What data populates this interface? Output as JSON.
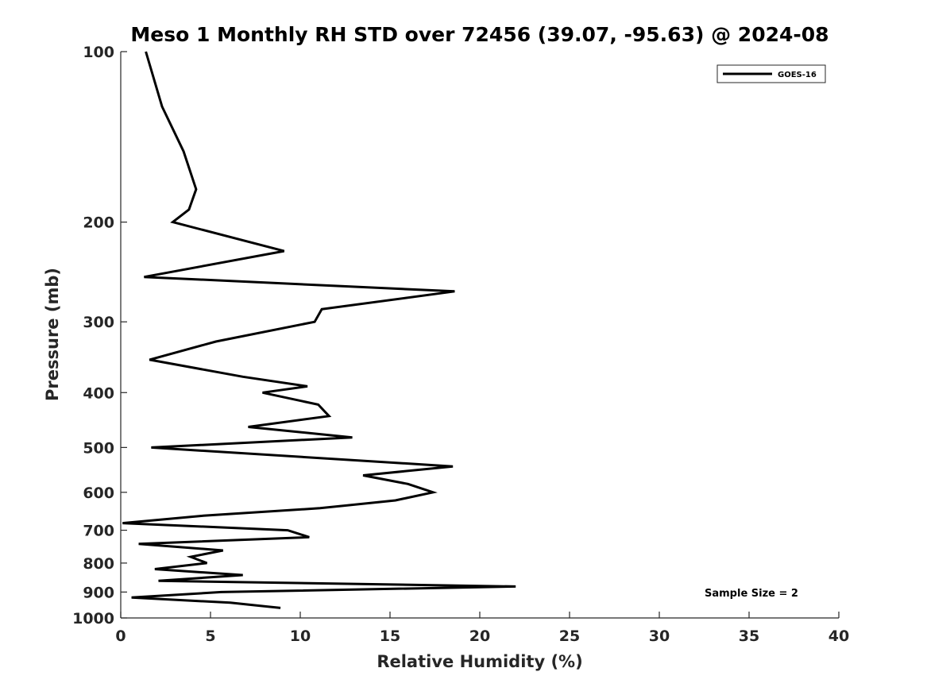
{
  "chart_data": {
    "type": "line",
    "title": "Meso 1 Monthly RH STD over 72456 (39.07, -95.63) @ 2024-08",
    "xlabel": "Relative Humidity (%)",
    "ylabel": "Pressure (mb)",
    "xlim": [
      0,
      40
    ],
    "ylim": [
      100,
      1000
    ],
    "yscale": "log",
    "y_reversed": true,
    "xticks": [
      "0",
      "5",
      "10",
      "15",
      "20",
      "25",
      "30",
      "35",
      "40"
    ],
    "yticks": [
      "100",
      "200",
      "300",
      "400",
      "500",
      "600",
      "700",
      "800",
      "900",
      "1000"
    ],
    "grid": false,
    "legend_position": "top-right",
    "annotation": "Sample Size = 2",
    "series": [
      {
        "name": "GOES-16",
        "color": "#000000",
        "points": [
          [
            1.4,
            100
          ],
          [
            2.3,
            125
          ],
          [
            3.5,
            150
          ],
          [
            4.2,
            175
          ],
          [
            3.8,
            190
          ],
          [
            2.9,
            200
          ],
          [
            9.1,
            225
          ],
          [
            1.3,
            250
          ],
          [
            18.6,
            265
          ],
          [
            11.2,
            285
          ],
          [
            10.8,
            300
          ],
          [
            5.3,
            325
          ],
          [
            1.6,
            350
          ],
          [
            6.8,
            375
          ],
          [
            10.4,
            390
          ],
          [
            7.9,
            400
          ],
          [
            11.0,
            420
          ],
          [
            11.6,
            440
          ],
          [
            7.1,
            460
          ],
          [
            12.9,
            480
          ],
          [
            1.7,
            500
          ],
          [
            18.5,
            540
          ],
          [
            13.5,
            560
          ],
          [
            16.0,
            580
          ],
          [
            17.4,
            600
          ],
          [
            15.3,
            620
          ],
          [
            11.1,
            640
          ],
          [
            4.6,
            660
          ],
          [
            0.1,
            680
          ],
          [
            9.3,
            700
          ],
          [
            10.5,
            720
          ],
          [
            1.0,
            740
          ],
          [
            5.7,
            760
          ],
          [
            3.9,
            780
          ],
          [
            4.8,
            800
          ],
          [
            1.9,
            820
          ],
          [
            6.8,
            840
          ],
          [
            2.1,
            860
          ],
          [
            22.0,
            880
          ],
          [
            5.6,
            900
          ],
          [
            0.6,
            920
          ],
          [
            6.1,
            940
          ],
          [
            8.9,
            960
          ]
        ]
      }
    ]
  }
}
